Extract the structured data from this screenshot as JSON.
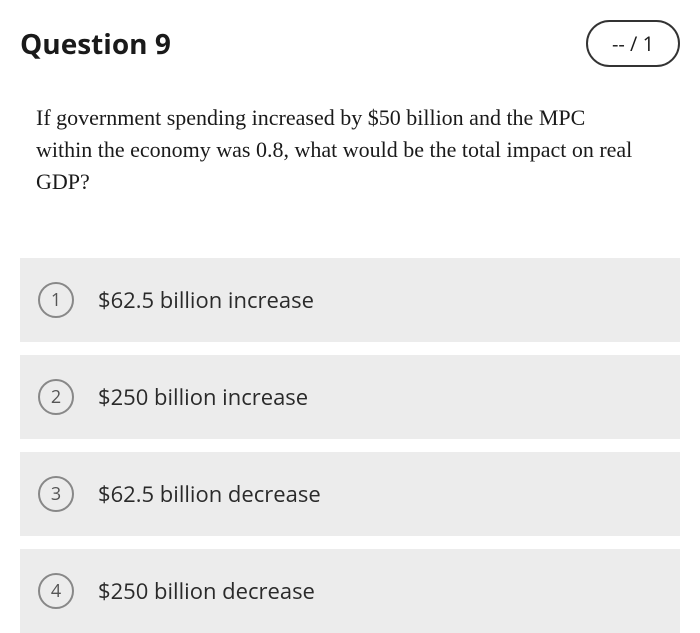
{
  "header": {
    "title": "Question 9",
    "score": "-- / 1"
  },
  "question": {
    "text": "If government spending increased by $50 billion and the MPC within the economy was 0.8, what would be the total impact on real GDP?"
  },
  "options": [
    {
      "number": "1",
      "text": "$62.5 billion increase"
    },
    {
      "number": "2",
      "text": "$250 billion increase"
    },
    {
      "number": "3",
      "text": "$62.5 billion decrease"
    },
    {
      "number": "4",
      "text": "$250 billion decrease"
    }
  ],
  "styling": {
    "option_background": "#ececec",
    "option_number_border": "#888",
    "text_color": "#1a1a1a",
    "question_font": "Georgia",
    "title_fontsize": 28,
    "question_fontsize": 22,
    "option_fontsize": 22
  }
}
